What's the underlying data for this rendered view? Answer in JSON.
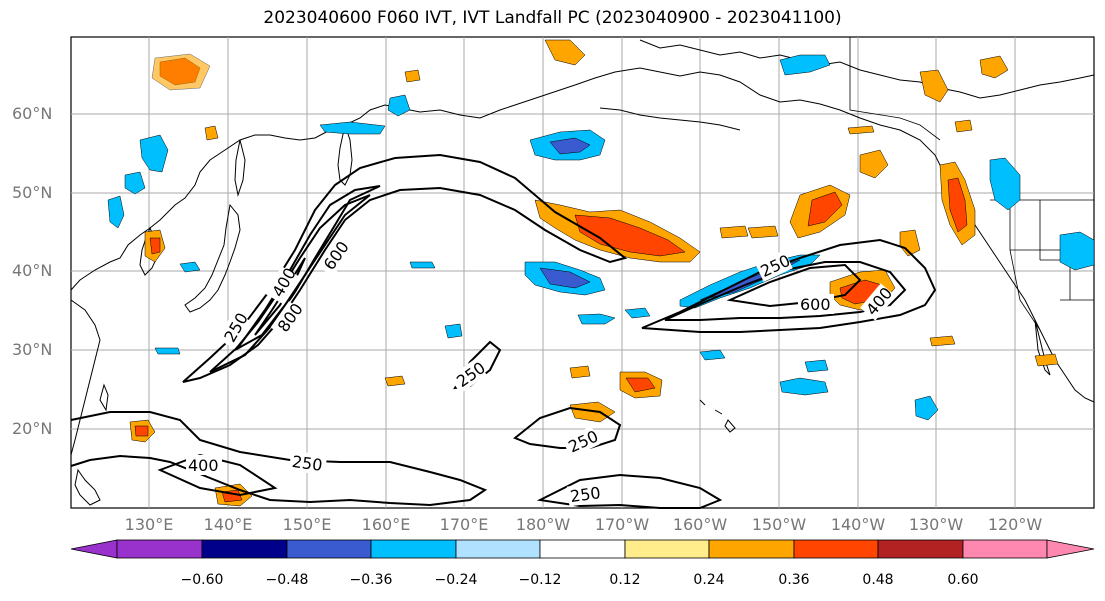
{
  "title": "2023040600 F060 IVT, IVT Landfall PC (2023040900 - 2023041100)",
  "lat_labels": [
    "60°N",
    "50°N",
    "40°N",
    "30°N",
    "20°N"
  ],
  "lon_labels": [
    "130°E",
    "140°E",
    "150°E",
    "160°E",
    "170°E",
    "180°W",
    "170°W",
    "160°W",
    "150°W",
    "140°W",
    "130°W",
    "120°W"
  ],
  "contour_labels": [
    "250",
    "400",
    "600",
    "800",
    "250",
    "250",
    "250",
    "400",
    "250",
    "250",
    "600",
    "400"
  ],
  "colorbar": {
    "ticks": [
      "−0.60",
      "−0.48",
      "−0.36",
      "−0.24",
      "−0.12",
      "0.12",
      "0.24",
      "0.36",
      "0.48",
      "0.60"
    ],
    "colors": [
      "#9932CC",
      "#00008B",
      "#3A5BD0",
      "#00BFFF",
      "#B0E2FF",
      "#FFFFFF",
      "#FFEC8B",
      "#FFA500",
      "#FF4500",
      "#B22222",
      "#FF88B0"
    ]
  },
  "colors": {
    "positive_mid": "#FFA500",
    "positive_strong": "#FF4500",
    "negative_mid": "#00BFFF",
    "negative_strong": "#3A5BD0",
    "contour": "#000000",
    "grid": "#AAAAAA"
  }
}
